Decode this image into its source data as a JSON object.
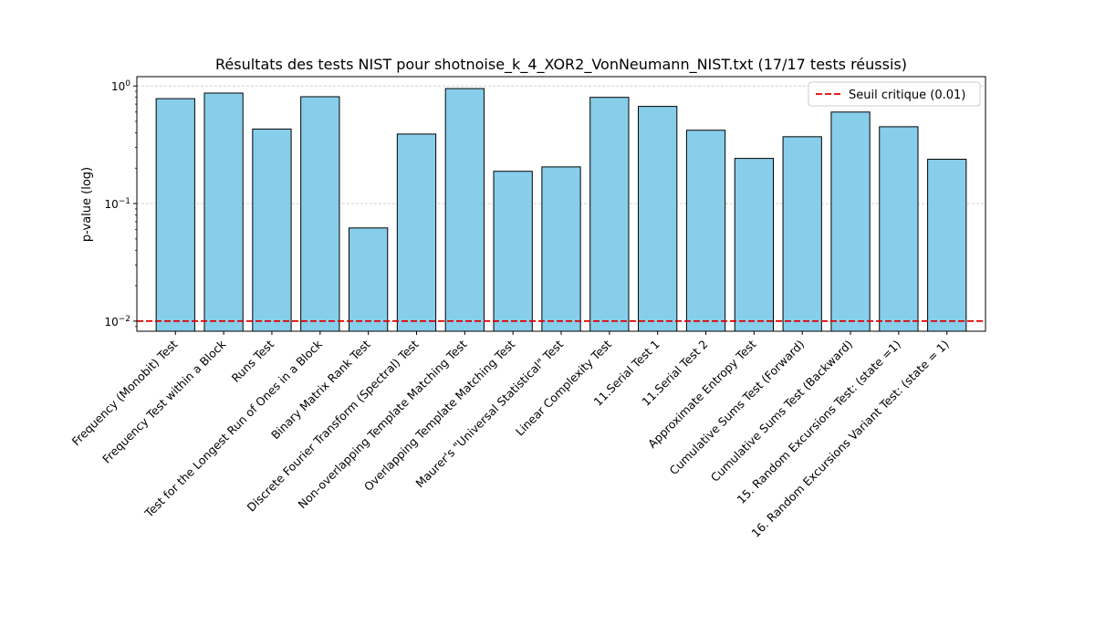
{
  "chart_data": {
    "type": "bar",
    "title": "Résultats des tests NIST pour shotnoise_k_4_XOR2_VonNeumann_NIST.txt (17/17 tests réussis)",
    "xlabel": "",
    "ylabel": "p-value (log)",
    "yscale": "log",
    "ylim": [
      0.0082,
      1.2
    ],
    "yticks": [
      {
        "value": 1,
        "label": "10^0"
      },
      {
        "value": 0.1,
        "label": "10^-1"
      },
      {
        "value": 0.01,
        "label": "10^-2"
      }
    ],
    "grid": "y-dashed",
    "bar_color": "#87ceeb",
    "bar_edge_color": "#000000",
    "categories": [
      "Frequency (Monobit) Test",
      "Frequency Test within a Block",
      "Runs Test",
      "Test for the Longest Run of Ones in a Block",
      "Binary Matrix Rank Test",
      "Discrete Fourier Transform (Spectral) Test",
      "Non-overlapping Template Matching Test",
      "Overlapping Template Matching Test",
      "Maurer's \"Universal Statistical\" Test",
      "Linear Complexity Test",
      "11.Serial Test 1",
      "11.Serial Test 2",
      "Approximate Entropy Test",
      "Cumulative Sums Test (Forward)",
      "Cumulative Sums Test (Backward)",
      "15. Random Excursions Test: (state =1)",
      "16. Random Excursions Variant Test: (state = 1)"
    ],
    "values": [
      0.78,
      0.87,
      0.43,
      0.81,
      0.062,
      0.39,
      0.95,
      0.188,
      0.205,
      0.8,
      0.67,
      0.42,
      0.242,
      0.37,
      0.6,
      0.45,
      0.238
    ],
    "threshold": {
      "value": 0.01,
      "color": "#dd0000",
      "style": "dashed"
    },
    "legend": {
      "position": "top-right",
      "entries": [
        "Seuil critique (0.01)"
      ]
    }
  }
}
